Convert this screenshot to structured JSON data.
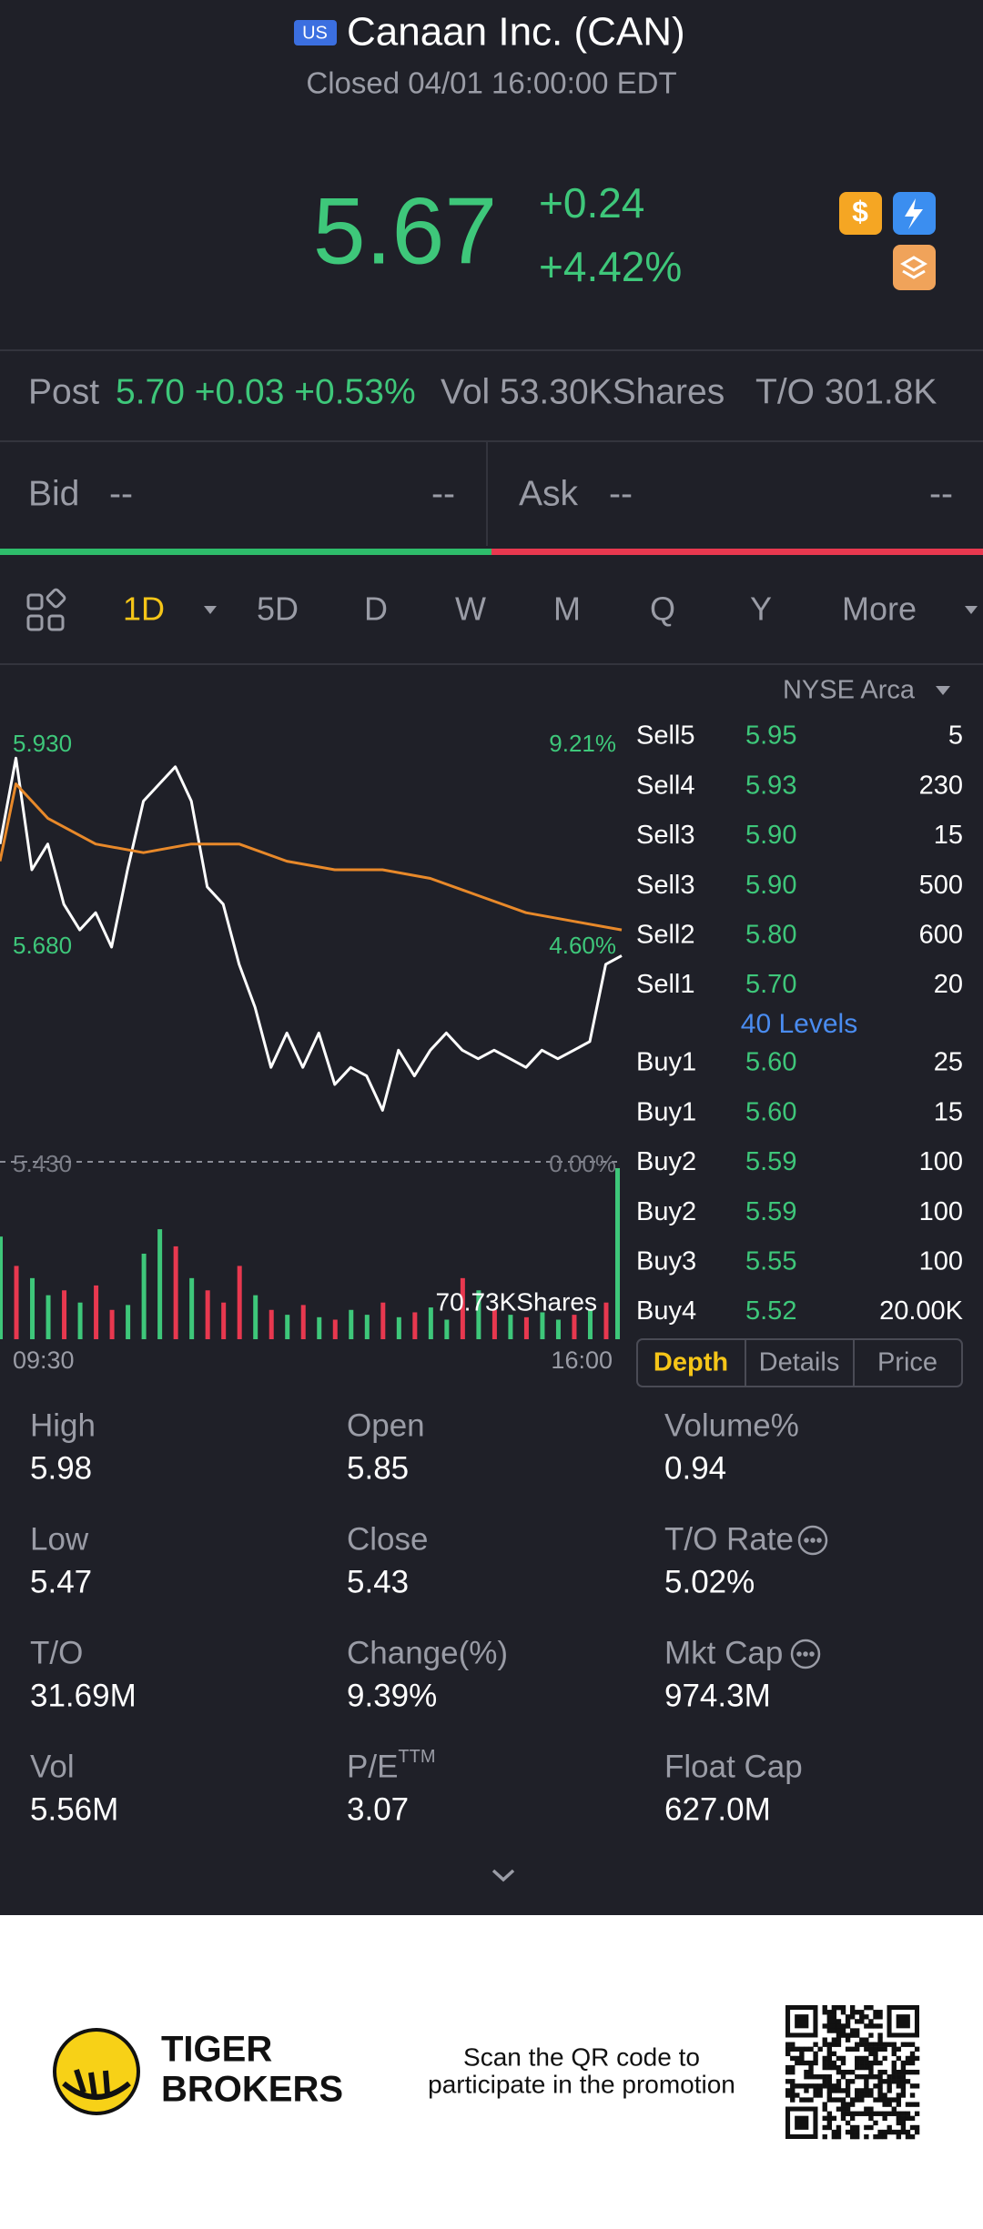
{
  "header": {
    "badge": "US",
    "title": "Canaan Inc. (CAN)",
    "status": "Closed 04/01 16:00:00 EDT"
  },
  "quote": {
    "price": "5.67",
    "change": "+0.24",
    "change_pct": "+4.42%"
  },
  "post": {
    "label": "Post",
    "value": "5.70 +0.03 +0.53%",
    "volume": "Vol 53.30KShares",
    "turnover": "T/O 301.8K"
  },
  "bid_ask": {
    "bid_label": "Bid",
    "bid_price": "--",
    "bid_size": "--",
    "ask_label": "Ask",
    "ask_price": "--",
    "ask_size": "--"
  },
  "periods": [
    "1D",
    "5D",
    "D",
    "W",
    "M",
    "Q",
    "Y",
    "More"
  ],
  "chart_data": {
    "type": "line",
    "ylim": [
      5.43,
      5.93
    ],
    "yticks": [
      {
        "value": 5.43,
        "label": "5.430"
      },
      {
        "value": 5.68,
        "label": "5.680"
      },
      {
        "value": 5.93,
        "label": "5.930"
      }
    ],
    "y2lim": [
      0,
      9.21
    ],
    "y2ticks": [
      {
        "value": 0,
        "label": "0.00%"
      },
      {
        "value": 4.6,
        "label": "4.60%"
      },
      {
        "value": 9.21,
        "label": "9.21%"
      }
    ],
    "xlim": [
      0,
      390
    ],
    "xticks": [
      {
        "value": 0,
        "label": "09:30"
      },
      {
        "value": 390,
        "label": "16:00"
      }
    ],
    "series": [
      {
        "color": "#ffffff",
        "x": [
          0,
          10,
          20,
          30,
          40,
          50,
          60,
          70,
          80,
          90,
          100,
          110,
          120,
          130,
          140,
          150,
          160,
          170,
          180,
          190,
          200,
          210,
          220,
          230,
          240,
          250,
          260,
          270,
          280,
          290,
          300,
          310,
          320,
          330,
          340,
          350,
          360,
          370,
          380,
          390
        ],
        "values": [
          5.8,
          5.9,
          5.77,
          5.8,
          5.73,
          5.7,
          5.72,
          5.68,
          5.77,
          5.85,
          5.87,
          5.89,
          5.85,
          5.75,
          5.73,
          5.66,
          5.61,
          5.54,
          5.58,
          5.54,
          5.58,
          5.52,
          5.54,
          5.53,
          5.49,
          5.56,
          5.53,
          5.56,
          5.58,
          5.56,
          5.55,
          5.56,
          5.55,
          5.54,
          5.56,
          5.55,
          5.56,
          5.57,
          5.66,
          5.67
        ]
      },
      {
        "color": "#e8892a",
        "x": [
          0,
          10,
          30,
          60,
          90,
          120,
          150,
          180,
          210,
          240,
          270,
          300,
          330,
          360,
          390
        ],
        "values": [
          5.78,
          5.87,
          5.83,
          5.8,
          5.79,
          5.8,
          5.8,
          5.78,
          5.77,
          5.77,
          5.76,
          5.74,
          5.72,
          5.71,
          5.7
        ]
      }
    ],
    "volume": {
      "type": "bar",
      "ylim": [
        0,
        70730
      ],
      "yticks": [
        {
          "value": 70730,
          "label": "70.73KShares"
        }
      ],
      "x": [
        0,
        10,
        20,
        30,
        40,
        50,
        60,
        70,
        80,
        90,
        100,
        110,
        120,
        130,
        140,
        150,
        160,
        170,
        180,
        190,
        200,
        210,
        220,
        230,
        240,
        250,
        260,
        270,
        280,
        290,
        300,
        310,
        320,
        330,
        340,
        350,
        360,
        370,
        380,
        390
      ],
      "values": [
        42000,
        30000,
        25000,
        18000,
        20000,
        15000,
        22000,
        12000,
        14000,
        35000,
        45000,
        38000,
        25000,
        20000,
        15000,
        30000,
        18000,
        12000,
        10000,
        14000,
        9000,
        8000,
        12000,
        10000,
        15000,
        9000,
        11000,
        13000,
        8000,
        25000,
        20000,
        12000,
        10000,
        9000,
        11000,
        8000,
        10000,
        12000,
        15000,
        70000
      ],
      "colors": [
        "#3ec77a",
        "#e8384f",
        "#3ec77a",
        "#3ec77a",
        "#e8384f",
        "#3ec77a",
        "#e8384f",
        "#e8384f",
        "#3ec77a",
        "#3ec77a",
        "#3ec77a",
        "#e8384f",
        "#3ec77a",
        "#e8384f",
        "#e8384f",
        "#e8384f",
        "#3ec77a",
        "#e8384f",
        "#3ec77a",
        "#e8384f",
        "#3ec77a",
        "#e8384f",
        "#3ec77a",
        "#3ec77a",
        "#e8384f",
        "#3ec77a",
        "#e8384f",
        "#3ec77a",
        "#3ec77a",
        "#e8384f",
        "#3ec77a",
        "#e8384f",
        "#3ec77a",
        "#e8384f",
        "#3ec77a",
        "#3ec77a",
        "#e8384f",
        "#3ec77a",
        "#e8384f",
        "#3ec77a"
      ]
    }
  },
  "order_book": {
    "exchange": "NYSE Arca",
    "sells": [
      [
        "Sell5",
        "5.95",
        "5"
      ],
      [
        "Sell4",
        "5.93",
        "230"
      ],
      [
        "Sell3",
        "5.90",
        "15"
      ],
      [
        "Sell3",
        "5.90",
        "500"
      ],
      [
        "Sell2",
        "5.80",
        "600"
      ],
      [
        "Sell1",
        "5.70",
        "20"
      ]
    ],
    "levels": "40 Levels",
    "buys": [
      [
        "Buy1",
        "5.60",
        "25"
      ],
      [
        "Buy1",
        "5.60",
        "15"
      ],
      [
        "Buy2",
        "5.59",
        "100"
      ],
      [
        "Buy2",
        "5.59",
        "100"
      ],
      [
        "Buy3",
        "5.55",
        "100"
      ],
      [
        "Buy4",
        "5.52",
        "20.00K"
      ]
    ],
    "tabs": [
      "Depth",
      "Details",
      "Price"
    ]
  },
  "stats": [
    {
      "label": "High",
      "value": "5.98"
    },
    {
      "label": "Open",
      "value": "5.85"
    },
    {
      "label": "Volume%",
      "value": "0.94"
    },
    {
      "label": "Low",
      "value": "5.47"
    },
    {
      "label": "Close",
      "value": "5.43"
    },
    {
      "label": "T/O Rate",
      "value": "5.02%"
    },
    {
      "label": "T/O",
      "value": "31.69M"
    },
    {
      "label": "Change(%)",
      "value": "9.39%"
    },
    {
      "label": "Mkt Cap",
      "value": "974.3M"
    },
    {
      "label": "Vol",
      "value": "5.56M"
    },
    {
      "label": "P/E",
      "sup": "TTM",
      "value": "3.07"
    },
    {
      "label": "Float Cap",
      "value": "627.0M"
    }
  ],
  "footer": {
    "brand_line1": "TIGER",
    "brand_line2": "BROKERS",
    "promo_line1": "Scan the QR code to",
    "promo_line2": "participate in the promotion"
  }
}
